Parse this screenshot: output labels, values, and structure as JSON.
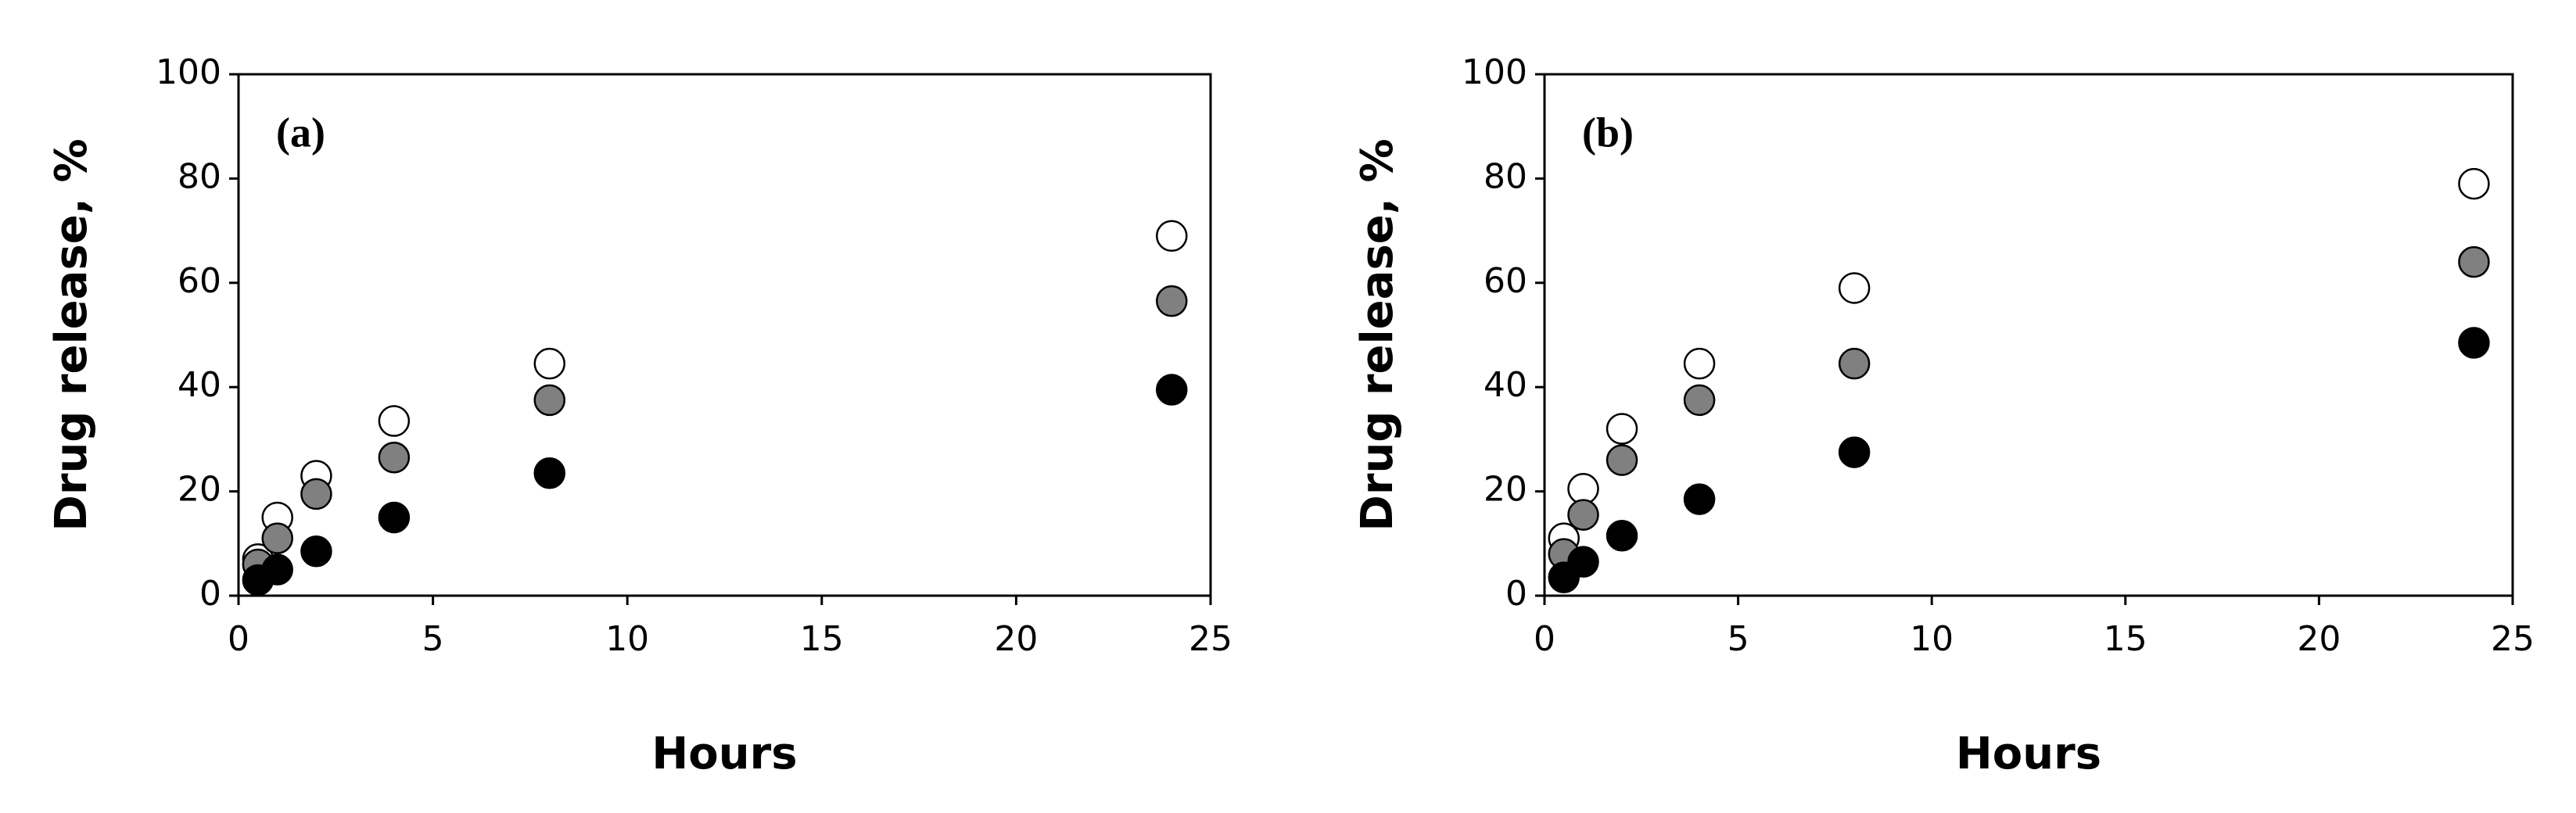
{
  "chart_data": [
    {
      "type": "scatter",
      "annotation": "(a)",
      "xlabel": "Hours",
      "ylabel": "Drug release, %",
      "xlim": [
        0,
        25
      ],
      "ylim": [
        0,
        100
      ],
      "xticks": [
        0,
        5,
        10,
        15,
        20,
        25
      ],
      "yticks": [
        0,
        20,
        40,
        60,
        80,
        100
      ],
      "x": [
        0.5,
        1,
        2,
        4,
        8,
        24
      ],
      "series": [
        {
          "color": "#ffffff",
          "values": [
            7,
            15,
            23,
            33.5,
            44.5,
            69
          ]
        },
        {
          "color": "#808080",
          "values": [
            6,
            11,
            19.5,
            26.5,
            37.5,
            56.5
          ]
        },
        {
          "color": "#000000",
          "values": [
            3,
            5,
            8.5,
            15,
            23.5,
            39.5
          ]
        }
      ]
    },
    {
      "type": "scatter",
      "annotation": "(b)",
      "xlabel": "Hours",
      "ylabel": "Drug release, %",
      "xlim": [
        0,
        25
      ],
      "ylim": [
        0,
        100
      ],
      "xticks": [
        0,
        5,
        10,
        15,
        20,
        25
      ],
      "yticks": [
        0,
        20,
        40,
        60,
        80,
        100
      ],
      "x": [
        0.5,
        1,
        2,
        4,
        8,
        24
      ],
      "series": [
        {
          "color": "#ffffff",
          "values": [
            11,
            20.5,
            32,
            44.5,
            59,
            79
          ]
        },
        {
          "color": "#808080",
          "values": [
            8,
            15.5,
            26,
            37.5,
            44.5,
            64
          ]
        },
        {
          "color": "#000000",
          "values": [
            3.5,
            6.5,
            11.5,
            18.5,
            27.5,
            48.5
          ]
        }
      ]
    }
  ]
}
